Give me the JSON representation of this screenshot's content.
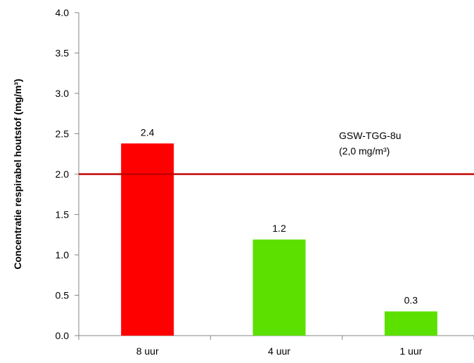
{
  "chart_data": {
    "type": "bar",
    "categories": [
      "8 uur",
      "4 uur",
      "1 uur"
    ],
    "values": [
      2.38,
      1.19,
      0.3
    ],
    "data_labels": [
      "2.4",
      "1.2",
      "0.3"
    ],
    "bar_colors": [
      "#ff0000",
      "#5ce000",
      "#5ce000"
    ],
    "title": "",
    "xlabel": "",
    "ylabel": "Concentratie respirabel houtstof (mg/m³)",
    "ylim": [
      0,
      4
    ],
    "yticks": [
      "0.0",
      "0.5",
      "1.0",
      "1.5",
      "2.0",
      "2.5",
      "3.0",
      "3.5",
      "4.0"
    ],
    "grid": false,
    "legend": "none",
    "reference_line": {
      "value": 2.0,
      "color": "#c00000",
      "label_line1": "GSW-TGG-8u",
      "label_line2": "(2,0 mg/m³)"
    }
  }
}
